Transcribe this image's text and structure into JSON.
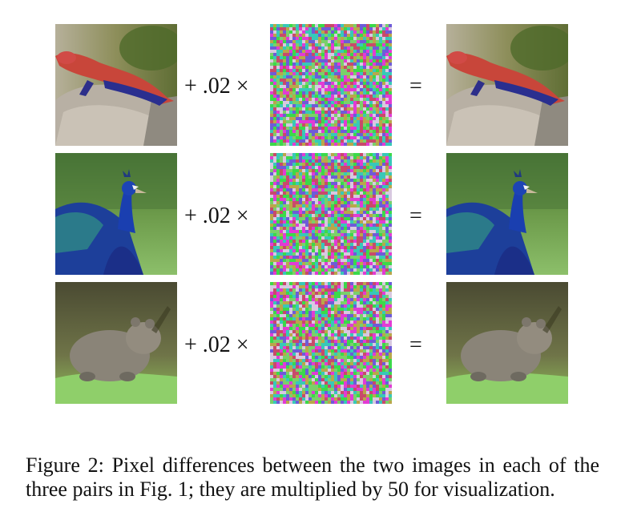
{
  "figure": {
    "rows": [
      {
        "subject": "lizard",
        "operator": "+ .02 ×",
        "equals": "="
      },
      {
        "subject": "peacock",
        "operator": "+ .02 ×",
        "equals": "="
      },
      {
        "subject": "wombat",
        "operator": "+ .02 ×",
        "equals": "="
      }
    ]
  },
  "caption": {
    "text": "Figure 2: Pixel differences between the two images in each of the three pairs in Fig. 1; they are multiplied by 50 for visualization."
  },
  "colors": {
    "noise": [
      "#e23bd4",
      "#3bd94a",
      "#b9a74a",
      "#6e5bd8",
      "#d8c8e0",
      "#38c8b8",
      "#c84a6a",
      "#7ad06a"
    ]
  }
}
